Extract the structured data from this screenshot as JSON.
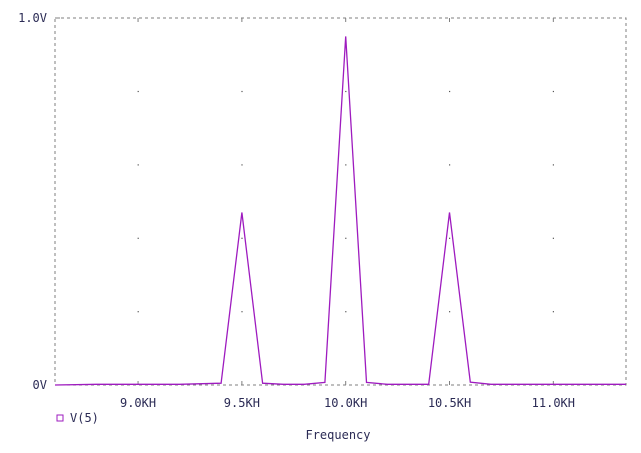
{
  "chart_data": {
    "type": "line",
    "xlabel": "Frequency",
    "ylabel": "",
    "title": "",
    "xlim": [
      8600,
      11350
    ],
    "ylim": [
      0,
      1.0
    ],
    "x_ticks": [
      {
        "value": 9000,
        "label": "9.0KH"
      },
      {
        "value": 9500,
        "label": "9.5KH"
      },
      {
        "value": 10000,
        "label": "10.0KH"
      },
      {
        "value": 10500,
        "label": "10.5KH"
      },
      {
        "value": 11000,
        "label": "11.0KH"
      }
    ],
    "y_ticks": [
      {
        "value": 0,
        "label": "0V"
      },
      {
        "value": 1.0,
        "label": "1.0V"
      }
    ],
    "grid": "dotted",
    "legend_position": "bottom-left",
    "series": [
      {
        "name": "V(5)",
        "color": "#9e1bbf",
        "marker": "square",
        "x": [
          8600,
          8800,
          9000,
          9200,
          9400,
          9500,
          9600,
          9700,
          9800,
          9900,
          10000,
          10100,
          10200,
          10300,
          10400,
          10500,
          10600,
          10700,
          10800,
          11000,
          11200,
          11350
        ],
        "y": [
          0.0,
          0.002,
          0.002,
          0.002,
          0.005,
          0.47,
          0.005,
          0.002,
          0.002,
          0.007,
          0.95,
          0.007,
          0.002,
          0.002,
          0.002,
          0.47,
          0.008,
          0.002,
          0.002,
          0.002,
          0.002,
          0.002
        ]
      }
    ]
  }
}
